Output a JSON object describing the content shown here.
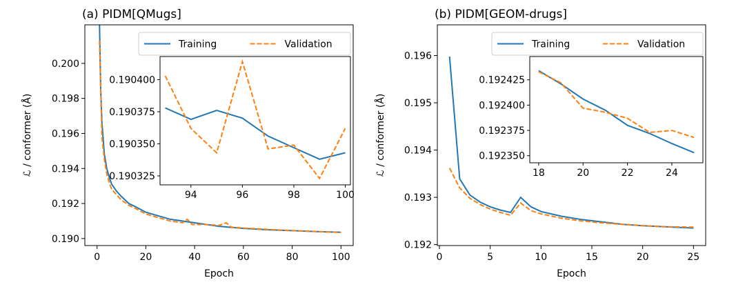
{
  "colors": {
    "training": "#1f77b4",
    "validation": "#ff7f0e"
  },
  "chart_data": [
    {
      "type": "line",
      "title": "(a) PIDM[QMugs]",
      "xlabel": "Epoch",
      "ylabel": "ℒ / conformer (Å)",
      "xlim": [
        -5,
        105
      ],
      "ylim": [
        0.1896,
        0.2022
      ],
      "xticks": [
        "0",
        "20",
        "40",
        "60",
        "80",
        "100"
      ],
      "yticks": [
        "0.190",
        "0.192",
        "0.194",
        "0.196",
        "0.198",
        "0.200"
      ],
      "legend": {
        "position": "top-right",
        "entries": [
          "Training",
          "Validation"
        ]
      },
      "series": [
        {
          "name": "Training",
          "style": "solid",
          "x": [
            1,
            1.5,
            2,
            3,
            4,
            5,
            6,
            8,
            10,
            13,
            16,
            20,
            25,
            30,
            40,
            50,
            60,
            70,
            80,
            90,
            100
          ],
          "y": [
            0.2023,
            0.1985,
            0.1966,
            0.1948,
            0.194,
            0.1935,
            0.1931,
            0.1927,
            0.1924,
            0.192,
            0.1918,
            0.1915,
            0.1913,
            0.1911,
            0.1909,
            0.1907,
            0.19058,
            0.1905,
            0.19045,
            0.1904,
            0.19036
          ]
        },
        {
          "name": "Validation",
          "style": "dashed",
          "x": [
            1,
            2,
            3,
            4,
            5,
            6,
            8,
            10,
            13,
            16,
            20,
            25,
            30,
            35,
            37,
            39,
            45,
            50,
            53,
            55,
            60,
            70,
            80,
            90,
            100
          ],
          "y": [
            0.2013,
            0.1958,
            0.1945,
            0.1937,
            0.1932,
            0.1928,
            0.1925,
            0.1922,
            0.1919,
            0.1917,
            0.1914,
            0.1912,
            0.191,
            0.1909,
            0.1911,
            0.1908,
            0.1908,
            0.19075,
            0.1909,
            0.19065,
            0.1906,
            0.19052,
            0.19046,
            0.1904,
            0.19035
          ]
        }
      ],
      "inset": {
        "xlim": [
          92.8,
          100.2
        ],
        "ylim": [
          0.190318,
          0.190418
        ],
        "xticks": [
          "94",
          "96",
          "98",
          "100"
        ],
        "yticks": [
          "0.190325",
          "0.190350",
          "0.190375",
          "0.190400"
        ],
        "series": [
          {
            "name": "Training",
            "x": [
              93,
              94,
              95,
              96,
              97,
              98,
              99,
              100
            ],
            "y": [
              0.190378,
              0.190369,
              0.190376,
              0.19037,
              0.190356,
              0.190347,
              0.190338,
              0.190343
            ]
          },
          {
            "name": "Validation",
            "x": [
              93,
              94,
              95,
              96,
              97,
              98,
              99,
              100
            ],
            "y": [
              0.190403,
              0.190362,
              0.190343,
              0.190414,
              0.190346,
              0.190349,
              0.190323,
              0.190362
            ]
          }
        ]
      }
    },
    {
      "type": "line",
      "title": "(b) PIDM[GEOM-drugs]",
      "xlabel": "Epoch",
      "ylabel": "ℒ / conformer (Å)",
      "xlim": [
        -0.2,
        26.2
      ],
      "ylim": [
        0.19198,
        0.19665
      ],
      "xticks": [
        "0",
        "5",
        "10",
        "15",
        "20",
        "25"
      ],
      "yticks": [
        "0.192",
        "0.193",
        "0.194",
        "0.195",
        "0.196"
      ],
      "legend": {
        "position": "top-right",
        "entries": [
          "Training",
          "Validation"
        ]
      },
      "series": [
        {
          "name": "Training",
          "style": "solid",
          "x": [
            1,
            2,
            3,
            4,
            5,
            6,
            7,
            8,
            9,
            10,
            12,
            14,
            16,
            18,
            20,
            22,
            25
          ],
          "y": [
            0.19598,
            0.19339,
            0.19305,
            0.1929,
            0.1928,
            0.19273,
            0.19268,
            0.193,
            0.1928,
            0.1927,
            0.1926,
            0.19253,
            0.19248,
            0.19243,
            0.1924,
            0.19238,
            0.19235
          ]
        },
        {
          "name": "Validation",
          "style": "dashed",
          "x": [
            1,
            2,
            3,
            4,
            5,
            6,
            7,
            8,
            9,
            10,
            12,
            14,
            16,
            18,
            20,
            22,
            25
          ],
          "y": [
            0.19362,
            0.1932,
            0.19298,
            0.19285,
            0.19275,
            0.19268,
            0.19262,
            0.19288,
            0.19272,
            0.19265,
            0.19256,
            0.1925,
            0.19246,
            0.19243,
            0.1924,
            0.19238,
            0.19237
          ]
        }
      ],
      "inset": {
        "xlim": [
          17.6,
          25.4
        ],
        "ylim": [
          0.192343,
          0.192448
        ],
        "xticks": [
          "18",
          "20",
          "22",
          "24"
        ],
        "yticks": [
          "0.192350",
          "0.192375",
          "0.192400",
          "0.192425"
        ],
        "series": [
          {
            "name": "Training",
            "x": [
              18,
              19,
              20,
              21,
              22,
              23,
              24,
              25
            ],
            "y": [
              0.192434,
              0.192421,
              0.192406,
              0.192395,
              0.19238,
              0.192372,
              0.192362,
              0.192353
            ]
          },
          {
            "name": "Validation",
            "x": [
              18,
              19,
              20,
              21,
              22,
              23,
              24,
              25
            ],
            "y": [
              0.192433,
              0.192422,
              0.192397,
              0.192393,
              0.192387,
              0.192373,
              0.192375,
              0.192368
            ]
          }
        ]
      }
    }
  ]
}
